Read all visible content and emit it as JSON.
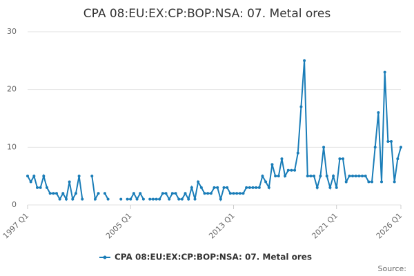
{
  "chart_data": {
    "type": "line",
    "title": "CPA 08:EU:EX:CP:BOP:NSA: 07. Metal ores",
    "source": "Source:",
    "categories": [
      "1997 Q1",
      null,
      null,
      null,
      null,
      null,
      null,
      null,
      null,
      null,
      null,
      null,
      null,
      null,
      null,
      null,
      null,
      null,
      null,
      null,
      null,
      null,
      null,
      null,
      null,
      null,
      null,
      null,
      null,
      null,
      null,
      null,
      "2005 Q1",
      null,
      null,
      null,
      null,
      null,
      null,
      null,
      null,
      null,
      null,
      null,
      null,
      null,
      null,
      null,
      null,
      null,
      null,
      null,
      null,
      null,
      null,
      null,
      null,
      null,
      null,
      null,
      null,
      null,
      null,
      null,
      "2013 Q1",
      null,
      null,
      null,
      null,
      null,
      null,
      null,
      null,
      null,
      null,
      null,
      null,
      null,
      null,
      null,
      null,
      null,
      null,
      null,
      null,
      null,
      null,
      null,
      null,
      null,
      null,
      null,
      null,
      null,
      null,
      null,
      "2021 Q1",
      null,
      null,
      null,
      null,
      null,
      null,
      null,
      null,
      null,
      null,
      null,
      null,
      null,
      null,
      null,
      null,
      null,
      null,
      null,
      "2026 Q1"
    ],
    "series": [
      {
        "name": "CPA 08:EU:EX:CP:BOP:NSA: 07. Metal ores",
        "color": "#1a7db8",
        "values": [
          5,
          4,
          5,
          3,
          3,
          5,
          3,
          2,
          2,
          2,
          1,
          2,
          1,
          4,
          1,
          2,
          5,
          1,
          null,
          null,
          5,
          1,
          2,
          null,
          2,
          1,
          null,
          null,
          null,
          1,
          null,
          1,
          1,
          2,
          1,
          2,
          1,
          null,
          1,
          1,
          1,
          1,
          2,
          2,
          1,
          2,
          2,
          1,
          1,
          2,
          1,
          3,
          1,
          4,
          3,
          2,
          2,
          2,
          3,
          3,
          1,
          3,
          3,
          2,
          2,
          2,
          2,
          2,
          3,
          3,
          3,
          3,
          3,
          5,
          4,
          3,
          7,
          5,
          5,
          8,
          5,
          6,
          6,
          6,
          9,
          17,
          25,
          5,
          5,
          5,
          3,
          5,
          10,
          5,
          3,
          5,
          3,
          8,
          8,
          4,
          5,
          5,
          5,
          5,
          5,
          5,
          4,
          4,
          10,
          16,
          4,
          23,
          11,
          11,
          4,
          8,
          10
        ]
      }
    ],
    "ylim": [
      0,
      30
    ],
    "yticks": [
      0,
      10,
      20,
      30
    ],
    "grid": true
  }
}
